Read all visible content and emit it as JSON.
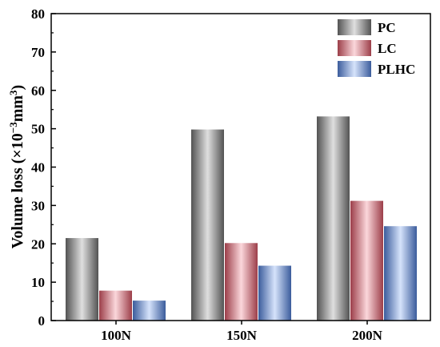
{
  "chart_data": {
    "type": "bar",
    "categories": [
      "100N",
      "150N",
      "200N"
    ],
    "series": [
      {
        "name": "PC",
        "values": [
          21.5,
          49.8,
          53.2
        ],
        "color": "#808080"
      },
      {
        "name": "LC",
        "values": [
          7.8,
          20.2,
          31.2
        ],
        "color": "#f06070"
      },
      {
        "name": "PLHC",
        "values": [
          5.2,
          14.3,
          24.6
        ],
        "color": "#5a8ef0"
      }
    ],
    "xlabel": "",
    "ylabel": {
      "prefix": "Volume loss (×10",
      "exp1": "−3",
      "mid": "mm",
      "exp2": "3",
      "suffix": ")"
    },
    "ylim": [
      0,
      80
    ],
    "yticks": [
      "0",
      "10",
      "20",
      "30",
      "40",
      "50",
      "60",
      "70",
      "80"
    ],
    "grid": false,
    "legend_position": "top-right"
  }
}
